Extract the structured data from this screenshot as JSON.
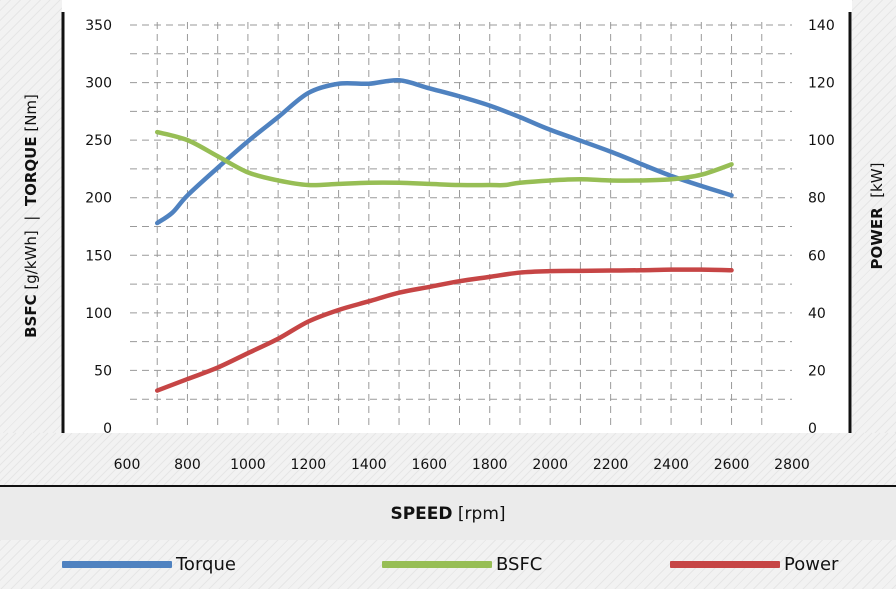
{
  "chart_data": {
    "type": "line",
    "xlabel_bold": "SPEED",
    "xlabel_unit": "[rpm]",
    "ylabel_left_parts": {
      "bsfc": "BSFC",
      "bsfc_unit": "[g/kWh]",
      "sep": "|",
      "torque": "TORQUE",
      "torque_unit": "[Nm]"
    },
    "ylabel_right_bold": "POWER",
    "ylabel_right_unit": "[kW]",
    "x_ticks": [
      "600",
      "800",
      "1000",
      "1200",
      "1400",
      "1600",
      "1800",
      "2000",
      "2200",
      "2400",
      "2600",
      "2800"
    ],
    "y_left_ticks": [
      "0",
      "50",
      "100",
      "150",
      "200",
      "250",
      "300",
      "350"
    ],
    "y_right_ticks": [
      "0",
      "20",
      "40",
      "60",
      "80",
      "100",
      "120",
      "140"
    ],
    "xlim": [
      600,
      2800
    ],
    "ylim_left": [
      0,
      350
    ],
    "ylim_right": [
      0,
      140
    ],
    "grid": true,
    "legend_position": "bottom",
    "series": [
      {
        "name": "Torque",
        "axis": "left",
        "color": "#4f82c0",
        "x": [
          700,
          750,
          800,
          900,
          1000,
          1100,
          1200,
          1300,
          1400,
          1500,
          1600,
          1700,
          1800,
          1900,
          2000,
          2200,
          2400,
          2600
        ],
        "y": [
          178,
          187,
          202,
          226,
          249,
          270,
          291,
          299,
          299,
          302,
          295,
          288,
          280,
          270,
          259,
          240,
          219,
          202
        ]
      },
      {
        "name": "BSFC",
        "axis": "left",
        "color": "#97be55",
        "x": [
          700,
          800,
          900,
          1000,
          1100,
          1200,
          1300,
          1400,
          1500,
          1600,
          1700,
          1800,
          1850,
          1900,
          2000,
          2100,
          2200,
          2300,
          2400,
          2500,
          2600
        ],
        "y": [
          257,
          250,
          236,
          222,
          215,
          211,
          212,
          213,
          213,
          212,
          211,
          211,
          211,
          213,
          215,
          216,
          215,
          215,
          216,
          220,
          229
        ]
      },
      {
        "name": "Power",
        "axis": "right",
        "color": "#c64545",
        "x": [
          700,
          800,
          900,
          1000,
          1100,
          1200,
          1300,
          1400,
          1500,
          1600,
          1700,
          1800,
          1900,
          2000,
          2100,
          2200,
          2300,
          2400,
          2500,
          2600
        ],
        "y": [
          13,
          17,
          21,
          26,
          31,
          37,
          41,
          44,
          47,
          49,
          51,
          52.5,
          54,
          54.5,
          54.6,
          54.7,
          54.8,
          55,
          55,
          54.8
        ]
      }
    ]
  }
}
